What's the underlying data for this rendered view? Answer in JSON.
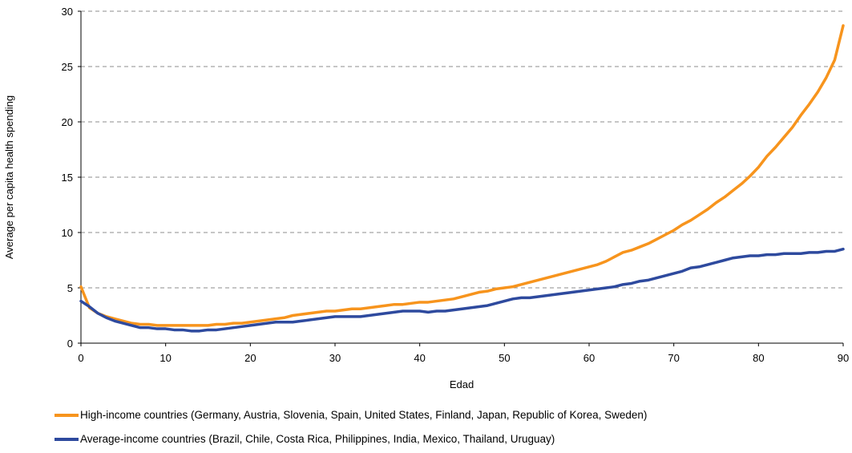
{
  "chart_data": {
    "type": "line",
    "xlabel": "Edad",
    "ylabel": "Average per capita health spending",
    "xlim": [
      0,
      90
    ],
    "ylim": [
      0,
      30
    ],
    "xticks": [
      0,
      10,
      20,
      30,
      40,
      50,
      60,
      70,
      80,
      90
    ],
    "yticks": [
      0,
      5,
      10,
      15,
      20,
      25,
      30
    ],
    "grid": "horizontal dashed",
    "legend_position": "bottom",
    "x": [
      0,
      1,
      2,
      3,
      4,
      5,
      6,
      7,
      8,
      9,
      10,
      11,
      12,
      13,
      14,
      15,
      16,
      17,
      18,
      19,
      20,
      21,
      22,
      23,
      24,
      25,
      26,
      27,
      28,
      29,
      30,
      31,
      32,
      33,
      34,
      35,
      36,
      37,
      38,
      39,
      40,
      41,
      42,
      43,
      44,
      45,
      46,
      47,
      48,
      49,
      50,
      51,
      52,
      53,
      54,
      55,
      56,
      57,
      58,
      59,
      60,
      61,
      62,
      63,
      64,
      65,
      66,
      67,
      68,
      69,
      70,
      71,
      72,
      73,
      74,
      75,
      76,
      77,
      78,
      79,
      80,
      81,
      82,
      83,
      84,
      85,
      86,
      87,
      88,
      89,
      90
    ],
    "series": [
      {
        "name": "High-income countries (Germany, Austria, Slovenia, Spain, United States, Finland, Japan, Republic of Korea, Sweden)",
        "color": "#F7941D",
        "values": [
          5.1,
          3.2,
          2.7,
          2.4,
          2.2,
          2.0,
          1.8,
          1.7,
          1.7,
          1.6,
          1.6,
          1.6,
          1.6,
          1.6,
          1.6,
          1.6,
          1.7,
          1.7,
          1.8,
          1.8,
          1.9,
          2.0,
          2.1,
          2.2,
          2.3,
          2.5,
          2.6,
          2.7,
          2.8,
          2.9,
          2.9,
          3.0,
          3.1,
          3.1,
          3.2,
          3.3,
          3.4,
          3.5,
          3.5,
          3.6,
          3.7,
          3.7,
          3.8,
          3.9,
          4.0,
          4.2,
          4.4,
          4.6,
          4.7,
          4.9,
          5.0,
          5.1,
          5.3,
          5.5,
          5.7,
          5.9,
          6.1,
          6.3,
          6.5,
          6.7,
          6.9,
          7.1,
          7.4,
          7.8,
          8.2,
          8.4,
          8.7,
          9.0,
          9.4,
          9.8,
          10.2,
          10.7,
          11.1,
          11.6,
          12.1,
          12.7,
          13.2,
          13.8,
          14.4,
          15.1,
          15.9,
          16.9,
          17.7,
          18.6,
          19.5,
          20.6,
          21.6,
          22.7,
          24.0,
          25.6,
          28.7
        ]
      },
      {
        "name": "Average-income countries (Brazil, Chile, Costa Rica, Philippines, India, Mexico, Thailand, Uruguay)",
        "color": "#2E4A9E",
        "values": [
          3.8,
          3.3,
          2.7,
          2.3,
          2.0,
          1.8,
          1.6,
          1.4,
          1.4,
          1.3,
          1.3,
          1.2,
          1.2,
          1.1,
          1.1,
          1.2,
          1.2,
          1.3,
          1.4,
          1.5,
          1.6,
          1.7,
          1.8,
          1.9,
          1.9,
          1.9,
          2.0,
          2.1,
          2.2,
          2.3,
          2.4,
          2.4,
          2.4,
          2.4,
          2.5,
          2.6,
          2.7,
          2.8,
          2.9,
          2.9,
          2.9,
          2.8,
          2.9,
          2.9,
          3.0,
          3.1,
          3.2,
          3.3,
          3.4,
          3.6,
          3.8,
          4.0,
          4.1,
          4.1,
          4.2,
          4.3,
          4.4,
          4.5,
          4.6,
          4.7,
          4.8,
          4.9,
          5.0,
          5.1,
          5.3,
          5.4,
          5.6,
          5.7,
          5.9,
          6.1,
          6.3,
          6.5,
          6.8,
          6.9,
          7.1,
          7.3,
          7.5,
          7.7,
          7.8,
          7.9,
          7.9,
          8.0,
          8.0,
          8.1,
          8.1,
          8.1,
          8.2,
          8.2,
          8.3,
          8.3,
          8.5
        ]
      }
    ]
  }
}
